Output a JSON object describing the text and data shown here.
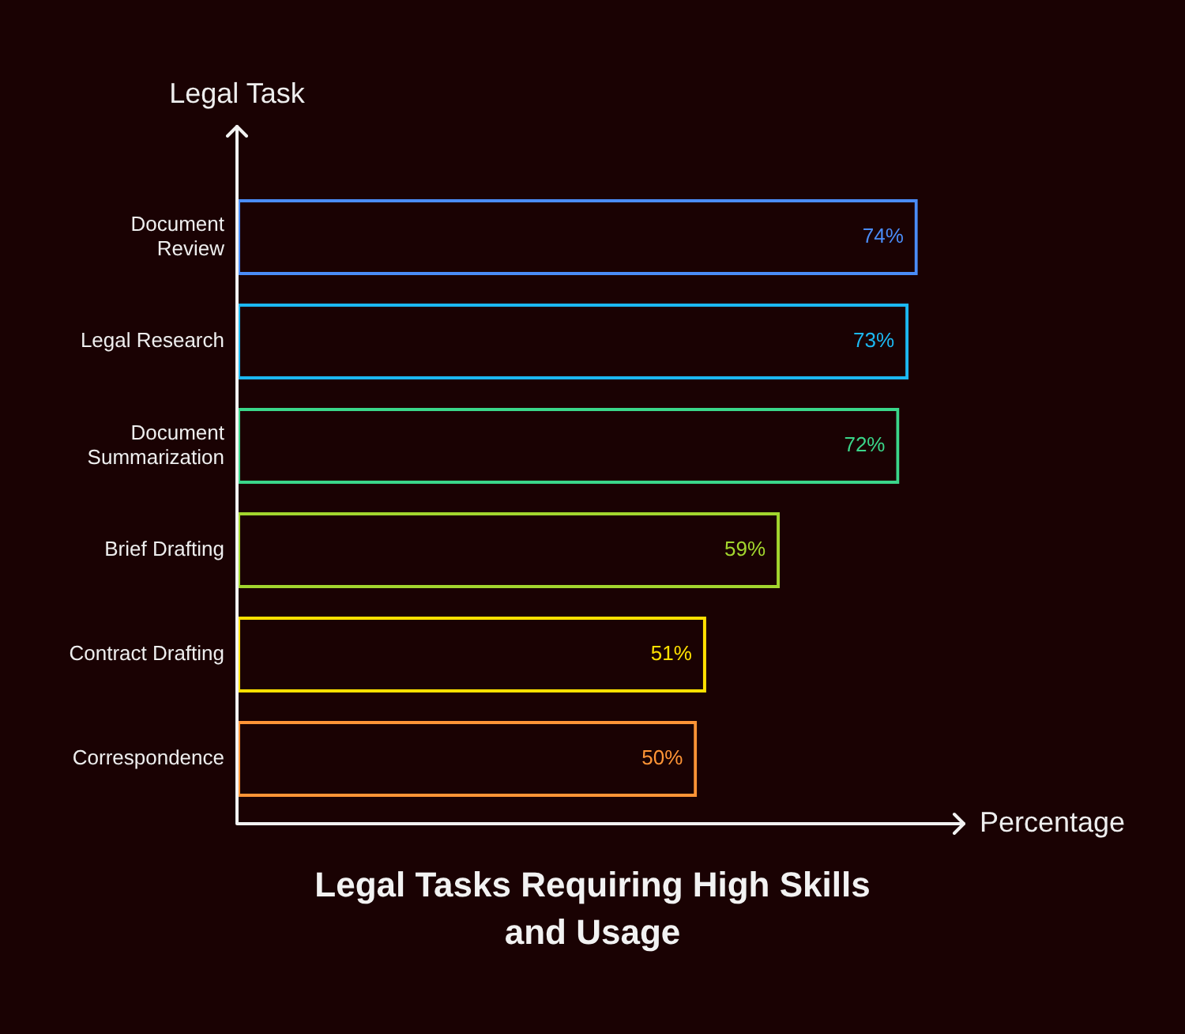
{
  "chart_data": {
    "type": "bar",
    "orientation": "horizontal",
    "title": "Legal Tasks Requiring High Skills and Usage",
    "xlabel": "Percentage",
    "ylabel": "Legal Task",
    "categories": [
      "Document Review",
      "Legal Research",
      "Document Summarization",
      "Brief Drafting",
      "Contract Drafting",
      "Correspondence"
    ],
    "values": [
      74,
      73,
      72,
      59,
      51,
      50
    ],
    "value_labels": [
      "74%",
      "73%",
      "72%",
      "59%",
      "51%",
      "50%"
    ],
    "colors": [
      "#4a8cf7",
      "#1cb8f2",
      "#3ad68a",
      "#a2d62e",
      "#ffe000",
      "#ff9436"
    ],
    "xlim": [
      0,
      79
    ],
    "tick_labels": "y",
    "legend": false
  }
}
